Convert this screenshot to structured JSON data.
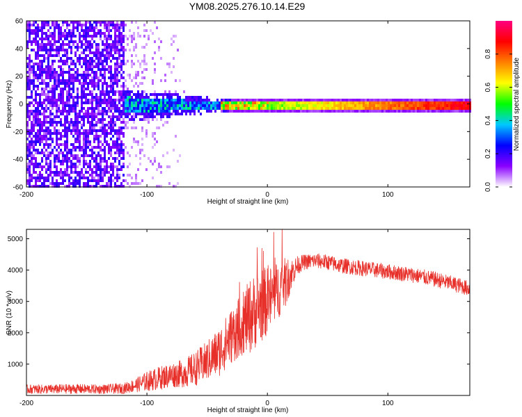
{
  "title": "YM08.2025.276.10.14.E29",
  "chart_data": [
    {
      "type": "heatmap",
      "title": "YM08.2025.276.10.14.E29",
      "xlabel": "Height of straight line (km)",
      "ylabel": "Frequency (Hz)",
      "xlim": [
        -200,
        168
      ],
      "ylim": [
        -60,
        60
      ],
      "xticks": [
        -200,
        -100,
        0,
        100
      ],
      "yticks": [
        -60,
        -40,
        -20,
        0,
        20,
        40,
        60
      ],
      "colorbar": {
        "label": "Normalized spectral amplitude",
        "range": [
          0,
          1
        ],
        "ticks": [
          "0.0",
          "0.2",
          "0.4",
          "0.6",
          "0.8"
        ],
        "tick_values": [
          0,
          0.2,
          0.4,
          0.6,
          0.8
        ],
        "colormap": [
          "#ffffff",
          "#8a00ff",
          "#0000ff",
          "#00c8ff",
          "#00ff00",
          "#ffff00",
          "#ff8000",
          "#ff0000",
          "#ff0080"
        ]
      },
      "features": [
        {
          "name": "broadband noise",
          "x_range": [
            -200,
            -120
          ],
          "freq_range": [
            -60,
            60
          ],
          "amplitude": 0.05
        },
        {
          "name": "sparse noise",
          "x_range": [
            -120,
            -65
          ],
          "freq_range": [
            -60,
            60
          ],
          "amplitude": 0.02
        },
        {
          "name": "carrier onset",
          "x_range": [
            -120,
            -30
          ],
          "freq_range": [
            -12,
            12
          ],
          "amplitude": 0.3
        },
        {
          "name": "carrier line",
          "x_range": [
            -30,
            168
          ],
          "center_freq": 0,
          "amplitude": 0.9
        }
      ]
    },
    {
      "type": "line",
      "xlabel": "Height of straight line (km)",
      "ylabel": "SNR (10 * v/v)",
      "xlim": [
        -200,
        168
      ],
      "ylim": [
        0,
        5300
      ],
      "xticks": [
        -200,
        -100,
        0,
        100
      ],
      "yticks": [
        1000,
        2000,
        3000,
        4000,
        5000
      ],
      "series": [
        {
          "name": "SNR",
          "color": "#e8302a",
          "x": [
            -200,
            -180,
            -160,
            -140,
            -120,
            -110,
            -100,
            -90,
            -80,
            -70,
            -60,
            -50,
            -40,
            -30,
            -20,
            -15,
            -10,
            -5,
            0,
            5,
            10,
            15,
            20,
            25,
            30,
            40,
            50,
            60,
            80,
            100,
            120,
            140,
            160,
            168
          ],
          "y": [
            200,
            200,
            210,
            200,
            220,
            320,
            450,
            550,
            650,
            700,
            850,
            1100,
            1400,
            1900,
            2300,
            2500,
            2700,
            2900,
            3000,
            3200,
            3400,
            3600,
            3900,
            4150,
            4250,
            4300,
            4250,
            4150,
            4050,
            3950,
            3850,
            3700,
            3500,
            3400
          ],
          "band": [
            150,
            150,
            160,
            150,
            170,
            220,
            320,
            380,
            400,
            450,
            550,
            650,
            800,
            900,
            1000,
            1200,
            1200,
            1200,
            1100,
            1000,
            900,
            800,
            500,
            300,
            250,
            250,
            250,
            250,
            250,
            250,
            250,
            250,
            250,
            250
          ]
        }
      ]
    }
  ]
}
